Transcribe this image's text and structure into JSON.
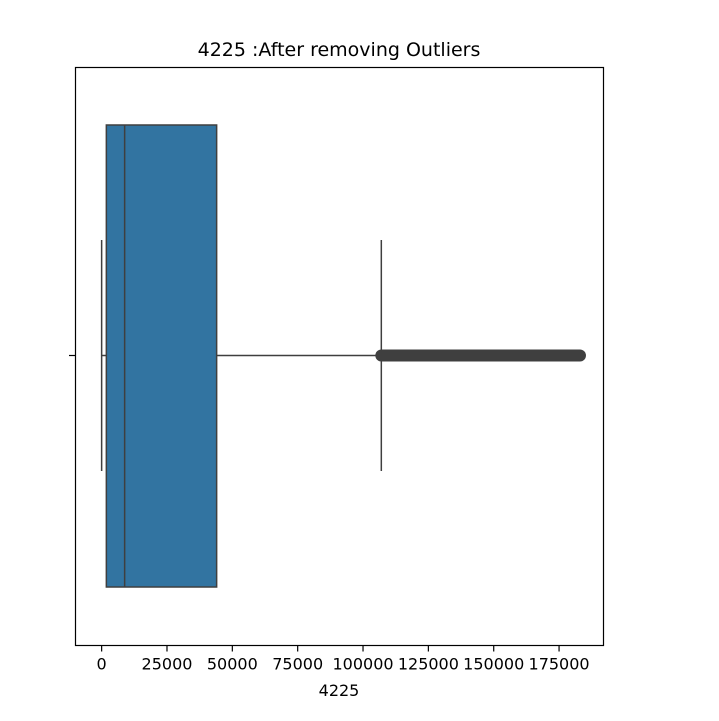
{
  "chart_data": {
    "type": "boxplot",
    "orientation": "horizontal",
    "title": "4225 :After removing Outliers",
    "xlabel": "4225",
    "ylabel": "",
    "xlim": [
      -10000,
      192000
    ],
    "xticks": [
      0,
      25000,
      50000,
      75000,
      100000,
      125000,
      150000,
      175000
    ],
    "xtick_labels": [
      "0",
      "25000",
      "50000",
      "75000",
      "100000",
      "125000",
      "150000",
      "175000"
    ],
    "grid": false,
    "box": {
      "whisker_low": 0,
      "q1": 1800,
      "median": 8800,
      "q3": 44000,
      "whisker_high": 107000,
      "outlier_min": 107000,
      "outlier_max": 183000
    },
    "colors": {
      "box_fill": "#3274a1",
      "line": "#3f3f3f",
      "outlier": "#3f3f3f"
    }
  }
}
